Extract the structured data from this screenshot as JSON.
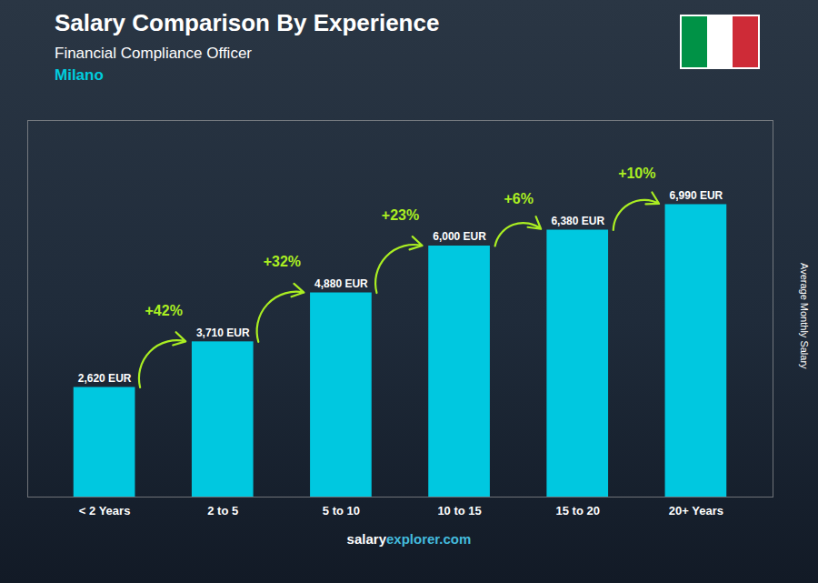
{
  "chart_data": {
    "type": "bar",
    "title": "Salary Comparison By Experience",
    "subtitle": "Financial Compliance Officer",
    "city": "Milano",
    "ylabel": "Average Monthly Salary",
    "categories": [
      "< 2 Years",
      "2 to 5",
      "5 to 10",
      "10 to 15",
      "15 to 20",
      "20+ Years"
    ],
    "values": [
      2620,
      3710,
      4880,
      6000,
      6380,
      6990
    ],
    "value_labels": [
      "2,620 EUR",
      "3,710 EUR",
      "4,880 EUR",
      "6,000 EUR",
      "6,380 EUR",
      "6,990 EUR"
    ],
    "data_labels": true,
    "color": "#00c8e0",
    "ylim": [
      0,
      9000
    ],
    "tick_labels": "x",
    "grid": false,
    "annotations": [
      {
        "text": "+42%",
        "from": "< 2 Years",
        "to": "2 to 5"
      },
      {
        "text": "+32%",
        "from": "2 to 5",
        "to": "5 to 10"
      },
      {
        "text": "+23%",
        "from": "5 to 10",
        "to": "10 to 15"
      },
      {
        "text": "+6%",
        "from": "10 to 15",
        "to": "15 to 20"
      },
      {
        "text": "+10%",
        "from": "15 to 20",
        "to": "20+ Years"
      }
    ],
    "annotation_color": "#aaee22",
    "city_color": "#00ccdd",
    "watermark": [
      "salary",
      "explorer.com"
    ],
    "watermark_colors": [
      "#ffffff",
      "#44bbdd"
    ]
  }
}
